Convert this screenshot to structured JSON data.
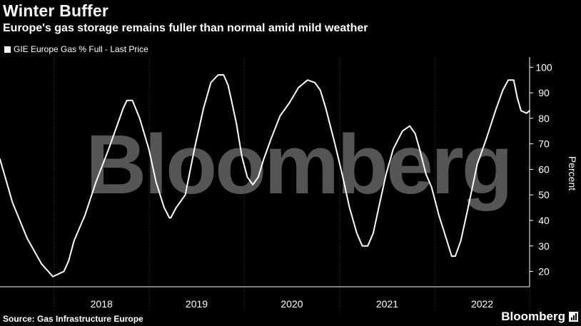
{
  "header": {
    "title": "Winter Buffer",
    "subtitle": "Europe's gas storage remains fuller than normal amid mild weather"
  },
  "legend": {
    "label": "GIE Europe Gas % Full - Last Price"
  },
  "footer": {
    "source": "Source: Gas Infrastructure Europe",
    "brand": "Bloomberg"
  },
  "watermark": "Bloomberg",
  "colors": {
    "background": "#000000",
    "line": "#ffffff",
    "grid": "#3a3a3a",
    "watermark": "#555555"
  },
  "chart_data": {
    "type": "line",
    "title": "Winter Buffer",
    "ylabel": "Percent",
    "ylim": [
      14,
      104
    ],
    "xlim": [
      "2017-06-08",
      "2022-12-31"
    ],
    "y_ticks": [
      20,
      30,
      40,
      50,
      60,
      70,
      80,
      90,
      100
    ],
    "x_tick_labels": [
      "2018",
      "2019",
      "2020",
      "2021",
      "2022"
    ],
    "grid": "vertical dotted at year boundaries",
    "series": [
      {
        "name": "GIE Europe Gas % Full - Last Price",
        "x": [
          "2017-06-08",
          "2017-07-26",
          "2017-09-20",
          "2017-11-14",
          "2017-12-28",
          "2018-02-08",
          "2018-02-26",
          "2018-03-19",
          "2018-04-30",
          "2018-06-11",
          "2018-07-30",
          "2018-09-03",
          "2018-09-24",
          "2018-10-08",
          "2018-10-29",
          "2018-11-26",
          "2018-12-31",
          "2019-01-28",
          "2019-02-28",
          "2019-03-20",
          "2019-03-25",
          "2019-04-15",
          "2019-05-20",
          "2019-06-24",
          "2019-07-29",
          "2019-08-26",
          "2019-09-23",
          "2019-10-14",
          "2019-10-31",
          "2019-11-11",
          "2019-12-02",
          "2019-12-23",
          "2020-01-13",
          "2020-02-03",
          "2020-02-24",
          "2020-03-16",
          "2020-04-13",
          "2020-05-18",
          "2020-06-22",
          "2020-07-27",
          "2020-08-31",
          "2020-09-28",
          "2020-10-19",
          "2020-11-09",
          "2020-12-14",
          "2021-01-11",
          "2021-02-08",
          "2021-03-08",
          "2021-03-29",
          "2021-04-19",
          "2021-05-10",
          "2021-05-31",
          "2021-06-28",
          "2021-07-26",
          "2021-08-30",
          "2021-09-27",
          "2021-10-18",
          "2021-11-01",
          "2021-11-29",
          "2021-12-20",
          "2022-01-17",
          "2022-02-14",
          "2022-03-07",
          "2022-03-21",
          "2022-04-11",
          "2022-05-09",
          "2022-06-13",
          "2022-07-18",
          "2022-08-22",
          "2022-09-19",
          "2022-10-10",
          "2022-10-31",
          "2022-11-14",
          "2022-11-28",
          "2022-12-19",
          "2022-12-31"
        ],
        "values": [
          64,
          47,
          33,
          23,
          18,
          20,
          24,
          32,
          42,
          55,
          68,
          78,
          84,
          87,
          87,
          80,
          68,
          55,
          45,
          41,
          41,
          45,
          50,
          68,
          84,
          94,
          97,
          97,
          93,
          88,
          78,
          65,
          57,
          54,
          57,
          64,
          72,
          81,
          86,
          92,
          95,
          94,
          91,
          84,
          70,
          58,
          45,
          35,
          30,
          30,
          35,
          45,
          58,
          68,
          75,
          77,
          74,
          69,
          58,
          53,
          42,
          33,
          26,
          26,
          32,
          45,
          62,
          72,
          83,
          91,
          95,
          95,
          88,
          83,
          82,
          83
        ]
      }
    ]
  }
}
